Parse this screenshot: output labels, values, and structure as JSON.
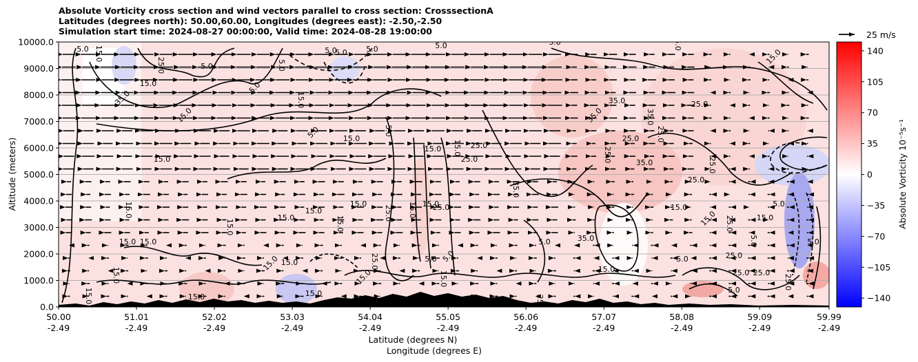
{
  "title_lines": [
    "Absolute Vorticity cross section and wind vectors parallel to cross section: CrosssectionA",
    "Latitudes (degrees north): 50.00,60.00, Longitudes (degrees east): -2.50,-2.50",
    "Simulation start time: 2024-08-27 00:00:00, Valid time: 2024-08-28 19:00:00"
  ],
  "chart_data": {
    "type": "heatmap",
    "subtype": "cross-section with filled contours, line contours and wind vectors",
    "ylabel": "Altitude (meters)",
    "xlabel_lines": [
      "Latitude (degrees N)",
      "Longitude (degrees E)"
    ],
    "ylim": [
      0,
      10000
    ],
    "xlim": [
      50.0,
      59.99
    ],
    "y_ticks": [
      "0.0",
      "1000.0",
      "2000.0",
      "3000.0",
      "4000.0",
      "5000.0",
      "6000.0",
      "7000.0",
      "8000.0",
      "9000.0",
      "10000.0"
    ],
    "x_ticks": [
      {
        "lat": "50.00",
        "lon": "-2.49"
      },
      {
        "lat": "51.01",
        "lon": "-2.49"
      },
      {
        "lat": "52.02",
        "lon": "-2.49"
      },
      {
        "lat": "53.03",
        "lon": "-2.49"
      },
      {
        "lat": "54.04",
        "lon": "-2.49"
      },
      {
        "lat": "55.05",
        "lon": "-2.49"
      },
      {
        "lat": "56.06",
        "lon": "-2.49"
      },
      {
        "lat": "57.07",
        "lon": "-2.49"
      },
      {
        "lat": "58.08",
        "lon": "-2.49"
      },
      {
        "lat": "59.09",
        "lon": "-2.49"
      },
      {
        "lat": "59.99",
        "lon": "-2.49"
      }
    ],
    "horizontal_grid": true,
    "colorbar": {
      "label": "Absolute Vorticity 10⁻⁵s⁻¹",
      "range": [
        -150,
        150
      ],
      "ticks": [
        "140",
        "105",
        "70",
        "35",
        "0",
        "−35",
        "−70",
        "−105",
        "−140"
      ],
      "colors": {
        "min": "#0000ff",
        "mid": "#ffffff",
        "max": "#ff0000"
      }
    },
    "quiver_key": {
      "label": "25 m/s"
    },
    "contour_labels": [
      "5.0",
      "15.0",
      "25.0",
      "35.0"
    ]
  }
}
